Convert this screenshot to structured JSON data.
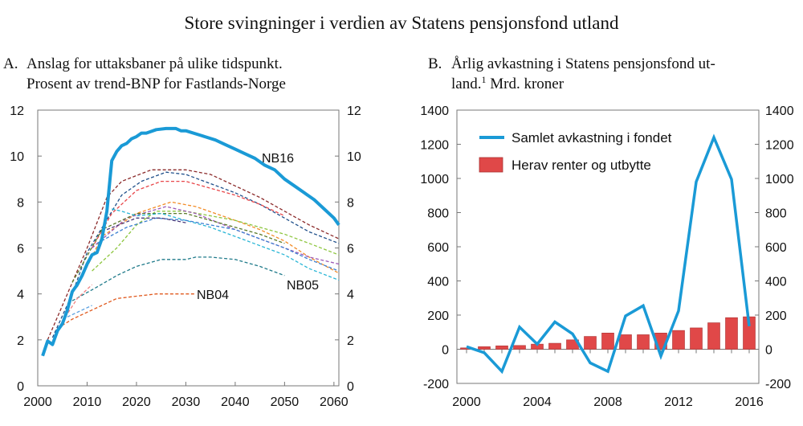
{
  "title": "Store svingninger i verdien av Statens pensjonsfond utland",
  "chart_data": [
    {
      "type": "line",
      "panel_label": "A.",
      "title_lines": [
        "Anslag for uttaksbaner på ulike tidspunkt.",
        "Prosent av trend-BNP for Fastlands-Norge"
      ],
      "xlim": [
        2000,
        2061
      ],
      "ylim": [
        0,
        12
      ],
      "x_ticks": [
        "2000",
        "2010",
        "2020",
        "2030",
        "2040",
        "2050",
        "2060"
      ],
      "y_ticks": [
        "0",
        "2",
        "4",
        "6",
        "8",
        "10",
        "12"
      ],
      "grid": false,
      "annotations": [
        "NB16",
        "NB05",
        "NB04"
      ],
      "series": [
        {
          "name": "NB16",
          "color": "#1a9ad6",
          "style": "solid",
          "points": [
            [
              2001,
              1.3
            ],
            [
              2002,
              1.95
            ],
            [
              2003,
              1.8
            ],
            [
              2004,
              2.4
            ],
            [
              2005,
              2.7
            ],
            [
              2006,
              3.3
            ],
            [
              2007,
              4.1
            ],
            [
              2008,
              4.4
            ],
            [
              2009,
              4.8
            ],
            [
              2010,
              5.3
            ],
            [
              2011,
              5.7
            ],
            [
              2012,
              5.8
            ],
            [
              2013,
              6.4
            ],
            [
              2014,
              7.6
            ],
            [
              2015,
              9.8
            ],
            [
              2016,
              10.2
            ],
            [
              2017,
              10.45
            ],
            [
              2018,
              10.55
            ],
            [
              2019,
              10.75
            ],
            [
              2020,
              10.85
            ],
            [
              2021,
              11.0
            ],
            [
              2022,
              11.0
            ],
            [
              2024,
              11.15
            ],
            [
              2026,
              11.2
            ],
            [
              2028,
              11.2
            ],
            [
              2029,
              11.1
            ],
            [
              2030,
              11.1
            ],
            [
              2033,
              10.9
            ],
            [
              2036,
              10.7
            ],
            [
              2038,
              10.5
            ],
            [
              2040,
              10.3
            ],
            [
              2042,
              10.1
            ],
            [
              2044,
              9.9
            ],
            [
              2046,
              9.6
            ],
            [
              2048,
              9.4
            ],
            [
              2050,
              9.0
            ],
            [
              2052,
              8.7
            ],
            [
              2054,
              8.4
            ],
            [
              2056,
              8.1
            ],
            [
              2058,
              7.7
            ],
            [
              2060,
              7.3
            ],
            [
              2061,
              7.0
            ]
          ]
        },
        {
          "color": "#8b2a2a",
          "style": "dashed",
          "points": [
            [
              2002,
              2.0
            ],
            [
              2006,
              4.0
            ],
            [
              2010,
              6.0
            ],
            [
              2014,
              8.2
            ],
            [
              2017,
              8.9
            ],
            [
              2023,
              9.4
            ],
            [
              2030,
              9.4
            ],
            [
              2035,
              9.2
            ],
            [
              2040,
              8.7
            ],
            [
              2045,
              8.2
            ],
            [
              2050,
              7.6
            ],
            [
              2055,
              7.0
            ],
            [
              2061,
              6.4
            ]
          ]
        },
        {
          "color": "#1f4f8a",
          "style": "dashed",
          "points": [
            [
              2003,
              2.1
            ],
            [
              2007,
              4.0
            ],
            [
              2010,
              5.8
            ],
            [
              2017,
              8.3
            ],
            [
              2021,
              8.9
            ],
            [
              2026,
              9.3
            ],
            [
              2030,
              9.2
            ],
            [
              2035,
              8.8
            ],
            [
              2040,
              8.4
            ],
            [
              2045,
              7.9
            ],
            [
              2050,
              7.3
            ],
            [
              2055,
              6.7
            ],
            [
              2061,
              6.2
            ]
          ]
        },
        {
          "color": "#e8474a",
          "style": "dashed",
          "points": [
            [
              2011,
              6.0
            ],
            [
              2015,
              7.5
            ],
            [
              2020,
              8.5
            ],
            [
              2025,
              8.9
            ],
            [
              2030,
              8.9
            ],
            [
              2035,
              8.6
            ],
            [
              2040,
              8.3
            ],
            [
              2045,
              7.9
            ],
            [
              2050,
              7.4
            ]
          ]
        },
        {
          "color": "#f28c28",
          "style": "dashed",
          "points": [
            [
              2008,
              4.3
            ],
            [
              2013,
              6.5
            ],
            [
              2020,
              7.5
            ],
            [
              2027,
              8.0
            ],
            [
              2032,
              7.8
            ],
            [
              2040,
              7.2
            ],
            [
              2045,
              6.8
            ],
            [
              2050,
              6.3
            ],
            [
              2055,
              5.6
            ],
            [
              2061,
              4.9
            ]
          ]
        },
        {
          "color": "#8dc63f",
          "style": "dashed",
          "points": [
            [
              2011,
              5.0
            ],
            [
              2016,
              6.0
            ],
            [
              2020,
              7.0
            ],
            [
              2024,
              7.6
            ],
            [
              2030,
              7.6
            ],
            [
              2035,
              7.4
            ],
            [
              2040,
              7.2
            ],
            [
              2045,
              6.9
            ],
            [
              2050,
              6.6
            ],
            [
              2055,
              6.2
            ],
            [
              2061,
              5.7
            ]
          ]
        },
        {
          "color": "#9b59b6",
          "style": "dashed",
          "points": [
            [
              2011,
              6.0
            ],
            [
              2018,
              7.3
            ],
            [
              2026,
              7.8
            ],
            [
              2032,
              7.5
            ],
            [
              2040,
              6.8
            ],
            [
              2045,
              6.4
            ],
            [
              2050,
              6.0
            ],
            [
              2055,
              5.6
            ],
            [
              2061,
              5.3
            ]
          ]
        },
        {
          "color": "#5a7a2a",
          "style": "dashed",
          "points": [
            [
              2007,
              4.5
            ],
            [
              2013,
              6.8
            ],
            [
              2020,
              7.5
            ],
            [
              2030,
              7.5
            ],
            [
              2035,
              7.2
            ],
            [
              2040,
              6.9
            ],
            [
              2045,
              6.6
            ],
            [
              2050,
              6.2
            ]
          ]
        },
        {
          "color": "#29b6d6",
          "style": "dashed",
          "points": [
            [
              2015,
              7.7
            ],
            [
              2017,
              7.6
            ],
            [
              2020,
              7.4
            ],
            [
              2025,
              7.5
            ],
            [
              2030,
              7.2
            ],
            [
              2035,
              6.9
            ],
            [
              2040,
              6.5
            ],
            [
              2045,
              6.1
            ],
            [
              2050,
              5.7
            ],
            [
              2055,
              5.1
            ],
            [
              2061,
              4.6
            ]
          ]
        },
        {
          "color": "#3b7fd1",
          "style": "dashed",
          "points": [
            [
              2012,
              6.2
            ],
            [
              2018,
              6.9
            ],
            [
              2024,
              7.3
            ],
            [
              2030,
              7.2
            ],
            [
              2035,
              7.0
            ],
            [
              2040,
              6.8
            ],
            [
              2045,
              6.4
            ],
            [
              2050,
              6.0
            ],
            [
              2055,
              5.5
            ],
            [
              2061,
              5.0
            ]
          ]
        },
        {
          "color": "#4a3a7a",
          "style": "dashed",
          "points": [
            [
              2014,
              6.8
            ],
            [
              2020,
              7.3
            ],
            [
              2025,
              7.3
            ],
            [
              2030,
              7.1
            ]
          ]
        },
        {
          "name": "NB05",
          "color": "#1f7a8a",
          "style": "dashed",
          "points": [
            [
              2007,
              3.7
            ],
            [
              2012,
              4.3
            ],
            [
              2016,
              4.8
            ],
            [
              2020,
              5.2
            ],
            [
              2025,
              5.5
            ],
            [
              2030,
              5.5
            ],
            [
              2032,
              5.6
            ],
            [
              2035,
              5.6
            ],
            [
              2040,
              5.5
            ],
            [
              2045,
              5.2
            ],
            [
              2050,
              4.8
            ]
          ]
        },
        {
          "name": "NB04",
          "color": "#e05a1f",
          "style": "dashed",
          "points": [
            [
              2004,
              2.5
            ],
            [
              2007,
              2.9
            ],
            [
              2010,
              3.2
            ],
            [
              2013,
              3.5
            ],
            [
              2016,
              3.8
            ],
            [
              2020,
              3.9
            ],
            [
              2024,
              4.0
            ],
            [
              2032,
              4.0
            ]
          ]
        },
        {
          "color": "#f08080",
          "style": "dashed",
          "points": [
            [
              2005,
              2.8
            ],
            [
              2008,
              3.8
            ],
            [
              2011,
              4.4
            ]
          ]
        },
        {
          "color": "#5aa0e0",
          "style": "dashed",
          "points": [
            [
              2006,
              3.0
            ],
            [
              2009,
              3.3
            ],
            [
              2011,
              3.5
            ]
          ]
        }
      ]
    },
    {
      "type": "bar+line",
      "panel_label": "B.",
      "title_lines": [
        "Årlig avkastning i Statens pensjonsfond ut-",
        "land.",
        "1",
        " Mrd. kroner"
      ],
      "categories": [
        2000,
        2001,
        2002,
        2003,
        2004,
        2005,
        2006,
        2007,
        2008,
        2009,
        2010,
        2011,
        2012,
        2013,
        2014,
        2015,
        2016
      ],
      "x_ticks": [
        "2000",
        "2004",
        "2008",
        "2012",
        "2016"
      ],
      "y_ticks": [
        "-200",
        "0",
        "200",
        "400",
        "600",
        "800",
        "1000",
        "1200",
        "1400"
      ],
      "ylim": [
        -200,
        1400
      ],
      "grid": false,
      "legend_position": "top-left",
      "series": [
        {
          "name": "Samlet avkastning i fondet",
          "type": "line",
          "color": "#1a9ad6",
          "values": [
            15,
            -20,
            -130,
            130,
            30,
            160,
            90,
            -80,
            -130,
            195,
            255,
            -40,
            225,
            980,
            1240,
            995,
            135
          ]
        },
        {
          "name": "Herav renter og utbytte",
          "type": "bar",
          "color": "#e04848",
          "values": [
            8,
            15,
            20,
            22,
            30,
            35,
            55,
            75,
            95,
            85,
            85,
            95,
            110,
            125,
            155,
            185,
            190
          ]
        }
      ]
    }
  ]
}
